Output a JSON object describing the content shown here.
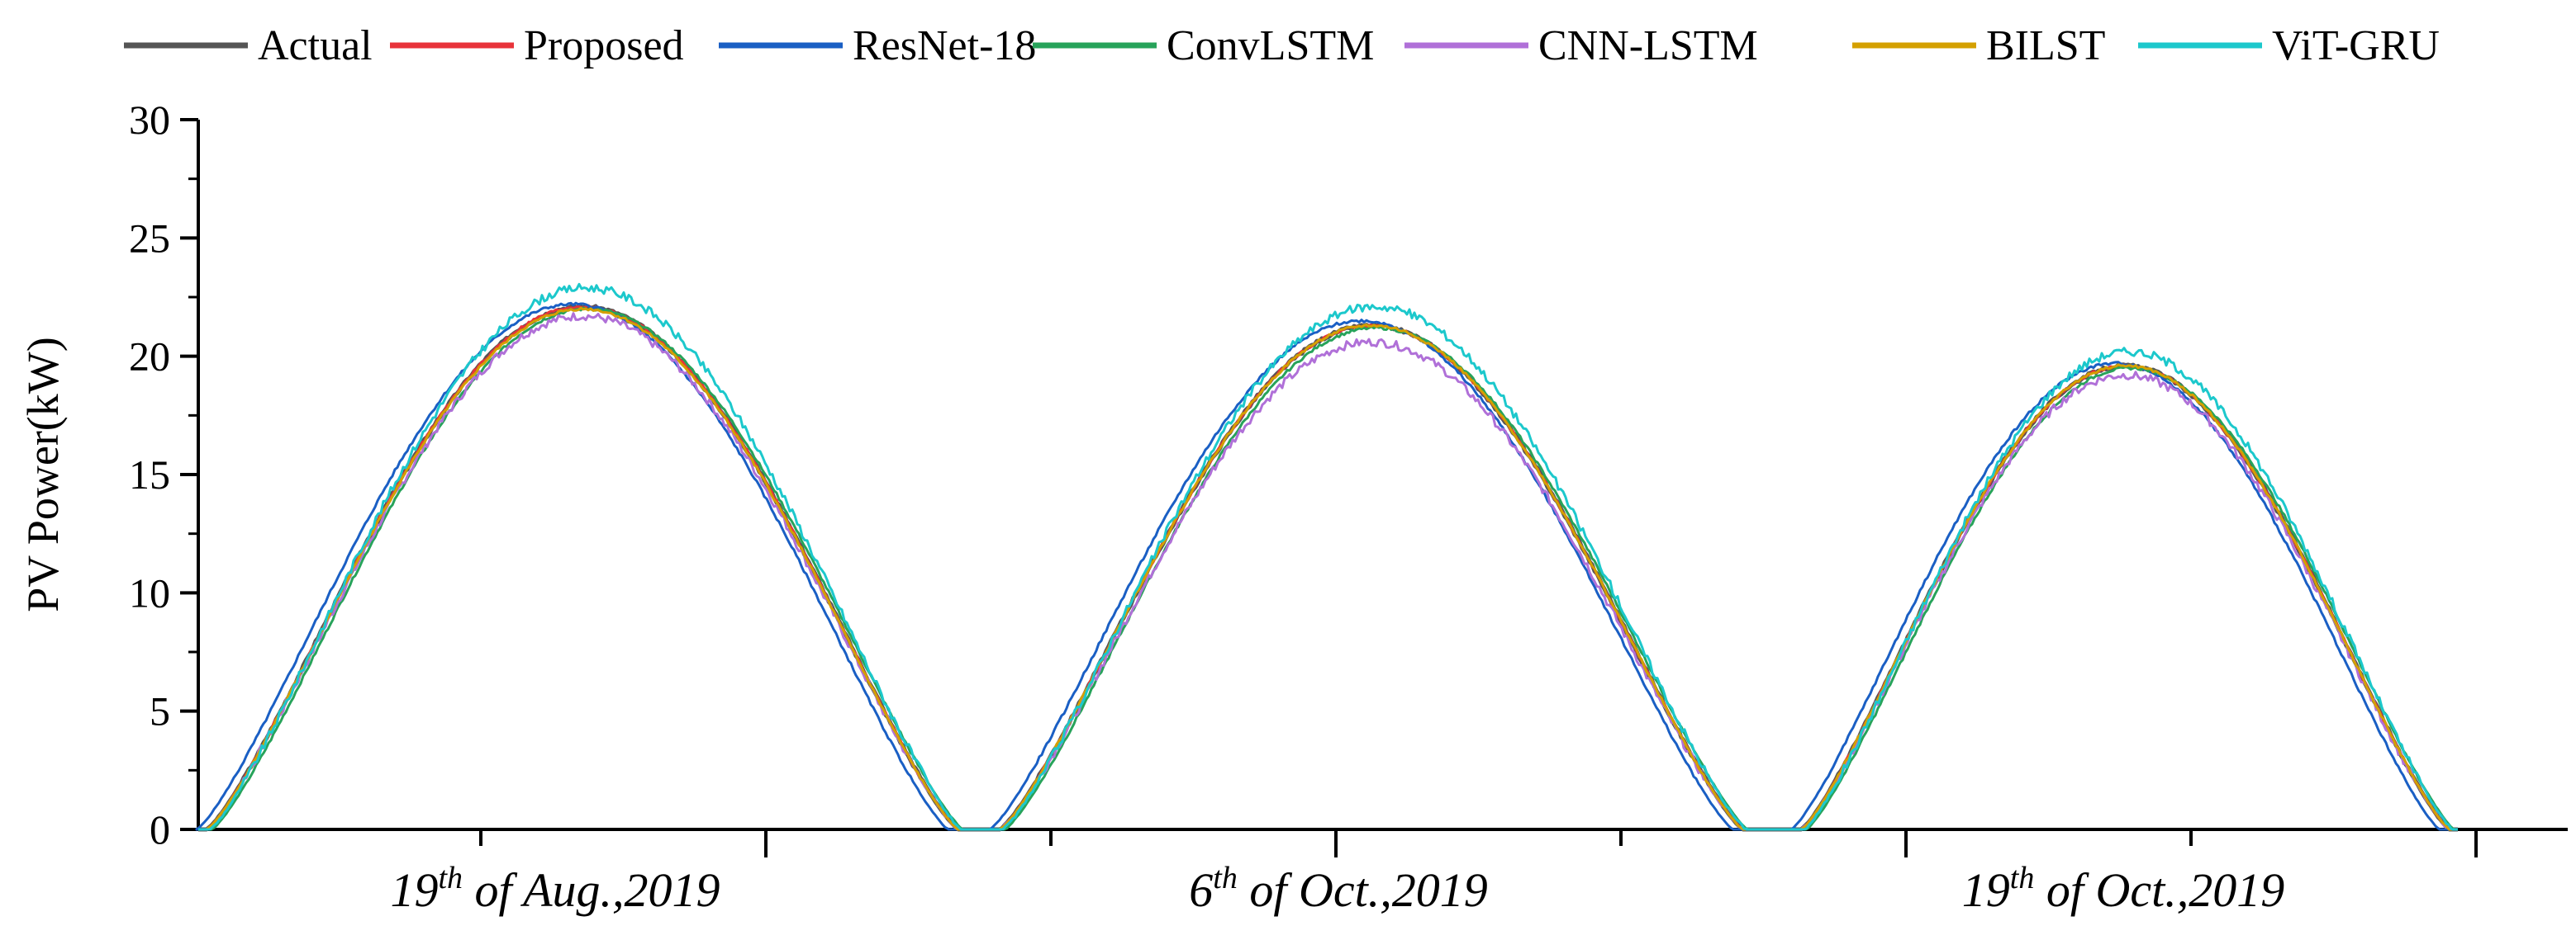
{
  "chart_data": {
    "type": "line",
    "title": "",
    "xlabel": "",
    "ylabel": "PV Power(kW)",
    "ylim": [
      0,
      30
    ],
    "yticks": [
      0,
      5,
      10,
      15,
      20,
      25,
      30
    ],
    "legend_position": "top",
    "days": [
      {
        "ordinal": "19",
        "suffix": "th",
        "text": " of Aug.,2019",
        "peak": 22.1
      },
      {
        "ordinal": "6",
        "suffix": "th",
        "text": " of  Oct.,2019",
        "peak": 21.3
      },
      {
        "ordinal": "19",
        "suffix": "th",
        "text": " of  Oct.,2019",
        "peak": 19.6
      }
    ],
    "series": [
      {
        "name": "Actual",
        "color": "#555555",
        "peaks": [
          22.1,
          21.3,
          19.6
        ]
      },
      {
        "name": "Proposed",
        "color": "#e8333a",
        "peaks": [
          22.1,
          21.3,
          19.6
        ]
      },
      {
        "name": "ResNet-18",
        "color": "#1a5fc4",
        "peaks": [
          22.2,
          21.5,
          19.7
        ]
      },
      {
        "name": "ConvLSTM",
        "color": "#27a35a",
        "peaks": [
          22.0,
          21.2,
          19.5
        ]
      },
      {
        "name": "CNN-LSTM",
        "color": "#b070d8",
        "peaks": [
          21.7,
          20.6,
          19.2
        ]
      },
      {
        "name": "BILST",
        "color": "#d4a000",
        "peaks": [
          22.0,
          21.3,
          19.6
        ]
      },
      {
        "name": "ViT-GRU",
        "color": "#1cc8cc",
        "peaks": [
          22.9,
          22.1,
          20.2
        ]
      }
    ]
  }
}
